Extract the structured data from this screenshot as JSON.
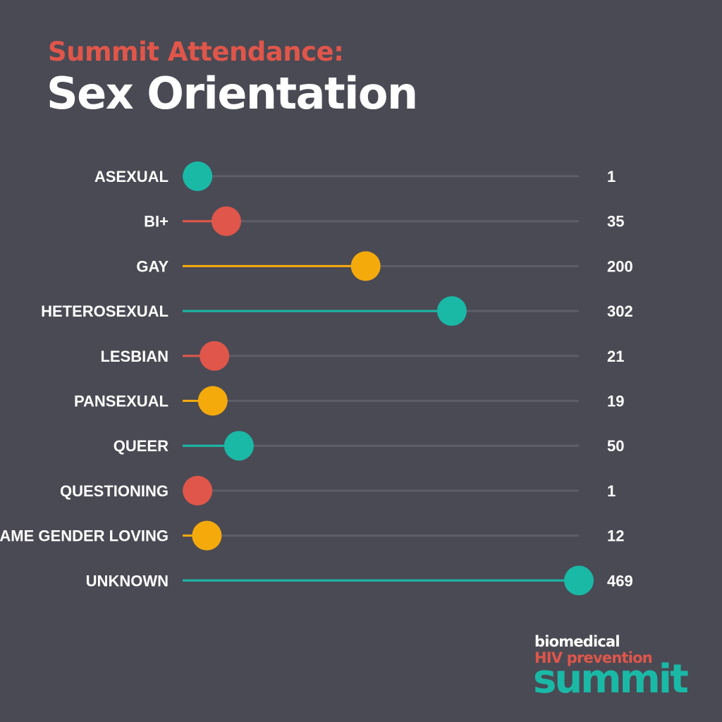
{
  "header": {
    "title_line1": "Summit Attendance:",
    "title_line2": "Sex Orientation"
  },
  "colors": {
    "background": "#4a4a54",
    "track": "#5e5e68",
    "accent_red": "#e0564a",
    "accent_white": "#ffffff",
    "teal": "#19b9a6",
    "red": "#e0564a",
    "yellow": "#f5aa0c"
  },
  "chart_data": {
    "type": "lollipop",
    "title": "Summit Attendance:",
    "subtitle": "Sex Orientation",
    "xlim": [
      0,
      469
    ],
    "grid": false,
    "categories": [
      "ASEXUAL",
      "BI+",
      "GAY",
      "HETEROSEXUAL",
      "LESBIAN",
      "PANSEXUAL",
      "QUEER",
      "QUESTIONING",
      "SAME GENDER LOVING",
      "UNKNOWN"
    ],
    "values": [
      1,
      35,
      200,
      302,
      21,
      19,
      50,
      1,
      12,
      469
    ],
    "value_labels": [
      "1",
      "35",
      "200",
      "302",
      "21",
      "19",
      "50",
      "1",
      "12",
      "469"
    ],
    "point_colors": [
      "teal",
      "red",
      "yellow",
      "teal",
      "red",
      "yellow",
      "teal",
      "red",
      "yellow",
      "teal"
    ]
  },
  "logo": {
    "line1": "biomedical",
    "line2": "HIV prevention",
    "line3": "summit"
  }
}
